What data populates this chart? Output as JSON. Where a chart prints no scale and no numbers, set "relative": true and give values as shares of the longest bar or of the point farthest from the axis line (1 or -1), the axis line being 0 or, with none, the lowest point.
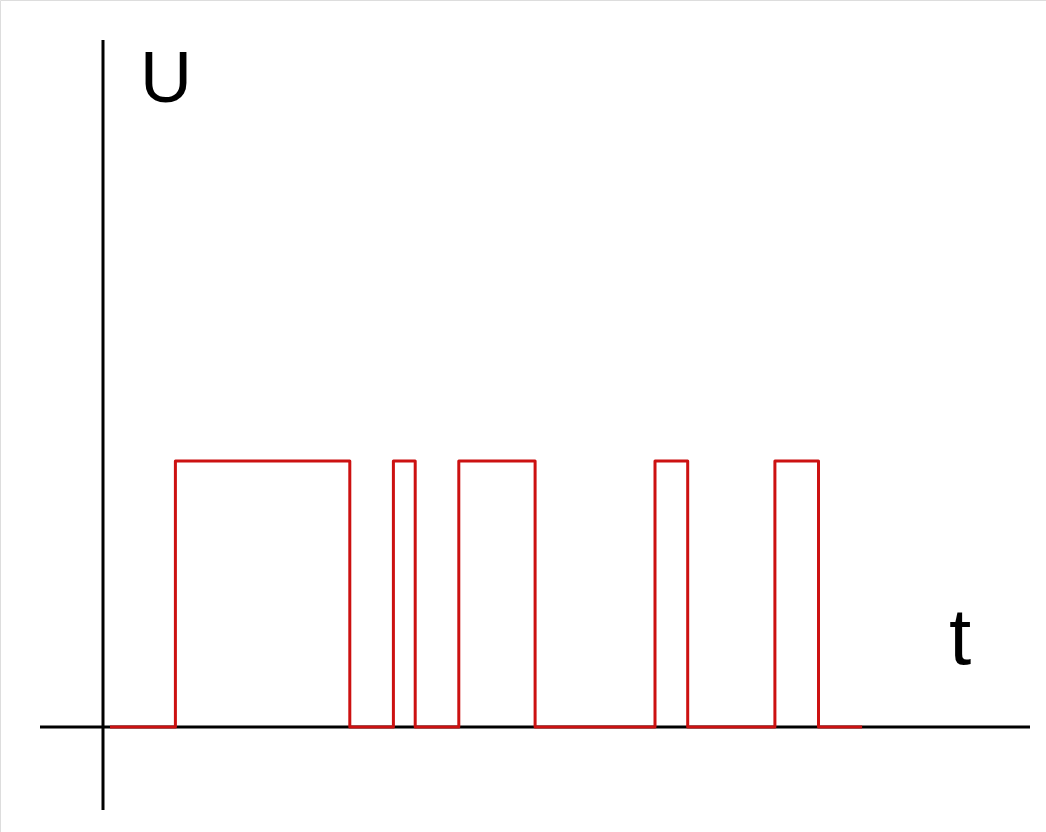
{
  "chart_data": {
    "type": "step",
    "relative": true,
    "xlabel": "t",
    "ylabel": "U",
    "categories": [
      null,
      null,
      null,
      null,
      null,
      null,
      null,
      null,
      null,
      null,
      null,
      null,
      null,
      null,
      null,
      null,
      null,
      null,
      null,
      null,
      null,
      null,
      null,
      null,
      null,
      null,
      null,
      null,
      null,
      null,
      null,
      null,
      null,
      null,
      null,
      null,
      null,
      null,
      null,
      null,
      null,
      null,
      null,
      null,
      null,
      null,
      null,
      null,
      null,
      null,
      null,
      null,
      null,
      null,
      null,
      null,
      null,
      null,
      null,
      null,
      null,
      null,
      null,
      null,
      null,
      null,
      null,
      null,
      null,
      null
    ],
    "series": [
      {
        "color": "#cc1111",
        "values": [
          0,
          0,
          0,
          0,
          0,
          0,
          1,
          1,
          1,
          1,
          1,
          1,
          1,
          1,
          1,
          1,
          1,
          1,
          1,
          1,
          1,
          1,
          0,
          0,
          0,
          0,
          1,
          1,
          0,
          0,
          0,
          0,
          1,
          1,
          1,
          1,
          1,
          1,
          1,
          0,
          0,
          0,
          0,
          0,
          0,
          0,
          0,
          0,
          0,
          0,
          1,
          1,
          1,
          0,
          0,
          0,
          0,
          0,
          0,
          0,
          0,
          1,
          1,
          1,
          1,
          0,
          0,
          0,
          0,
          0
        ]
      }
    ]
  }
}
